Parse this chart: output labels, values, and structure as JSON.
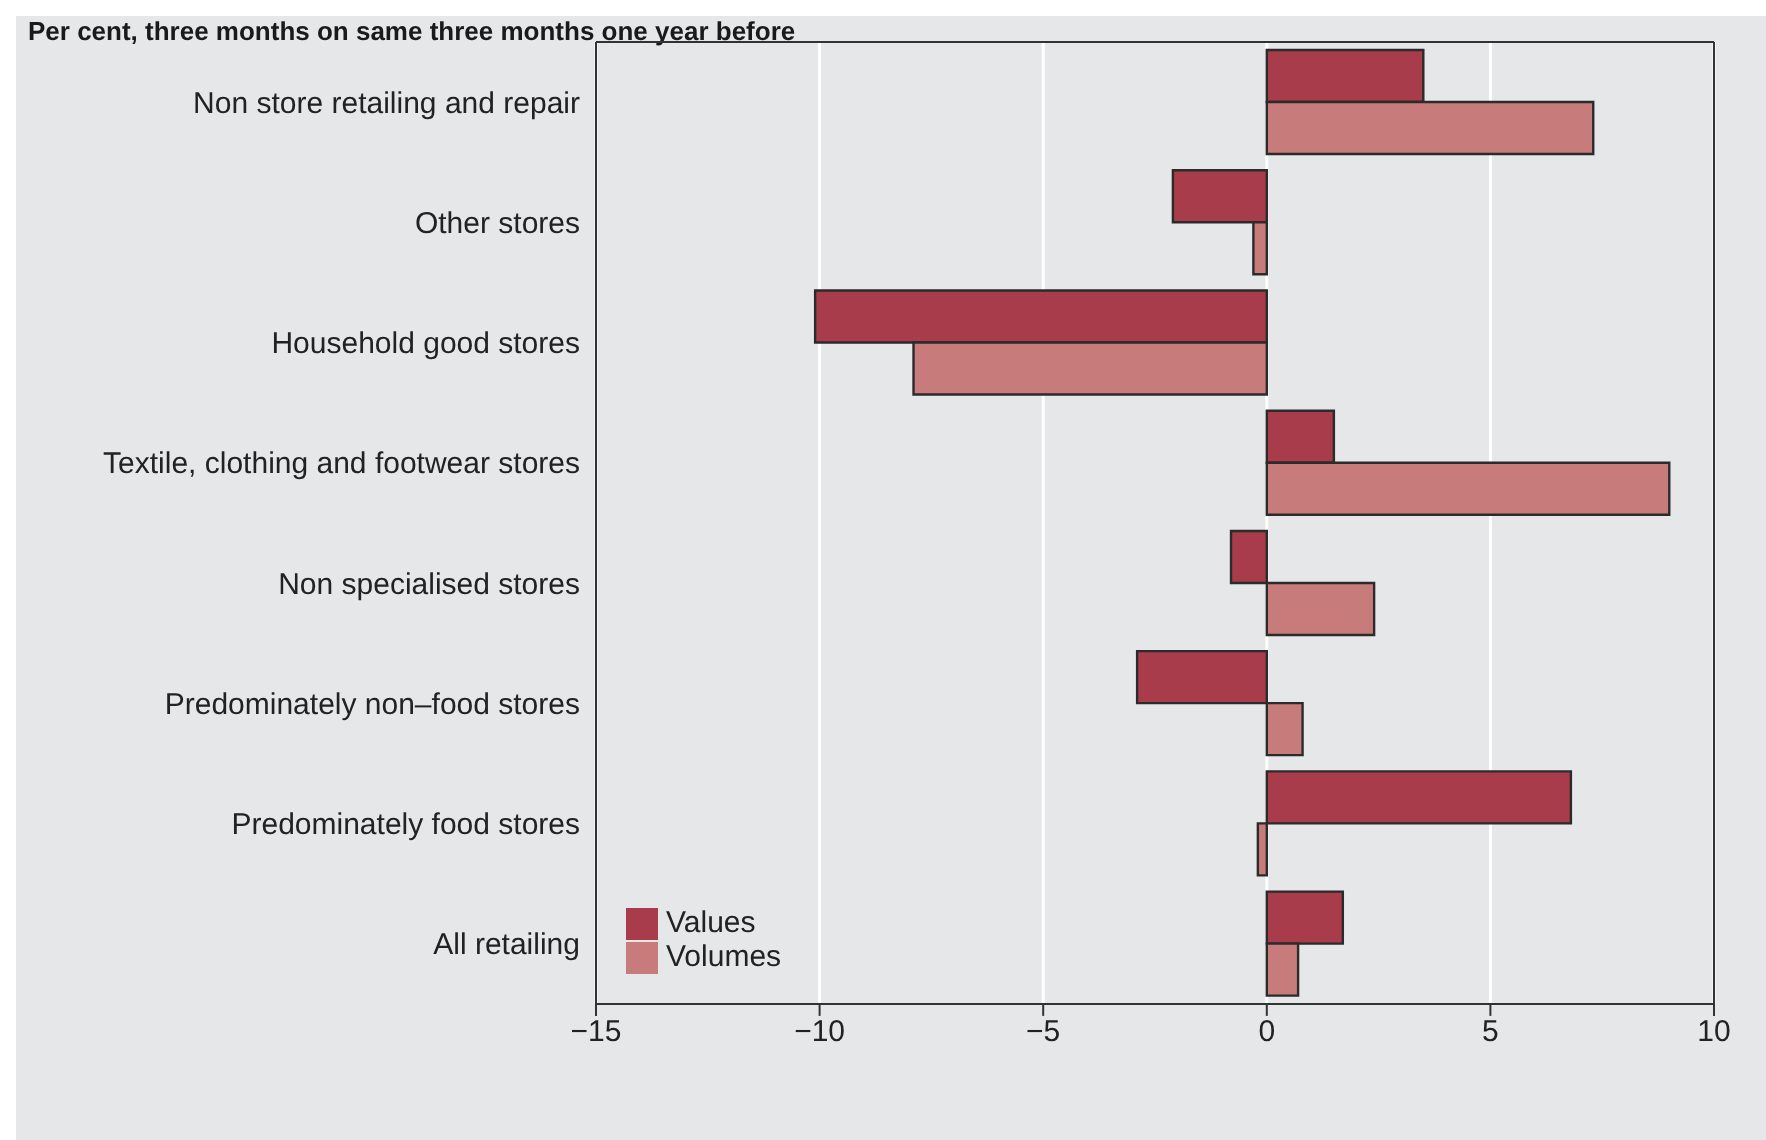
{
  "chart_data": {
    "type": "bar",
    "orientation": "horizontal",
    "title": "Per cent, three months on same three months one year before",
    "categories": [
      "Non store retailing and repair",
      "Other stores",
      "Household good stores",
      "Textile, clothing and footwear stores",
      "Non specialised stores",
      "Predominately non–food stores",
      "Predominately food stores",
      "All retailing"
    ],
    "series": [
      {
        "name": "Values",
        "color": "#a93c4a",
        "values": [
          3.5,
          -2.1,
          -10.1,
          1.5,
          -0.8,
          -2.9,
          6.8,
          1.7
        ]
      },
      {
        "name": "Volumes",
        "color": "#c87b7b",
        "values": [
          7.3,
          -0.3,
          -7.9,
          9.0,
          2.4,
          0.8,
          -0.2,
          0.7
        ]
      }
    ],
    "xlim": [
      -15,
      10
    ],
    "xticks": [
      {
        "value": -15,
        "label": "−15"
      },
      {
        "value": -10,
        "label": "−10"
      },
      {
        "value": -5,
        "label": "−5"
      },
      0,
      5,
      10
    ],
    "grid": "x",
    "legend": "bottom left"
  }
}
